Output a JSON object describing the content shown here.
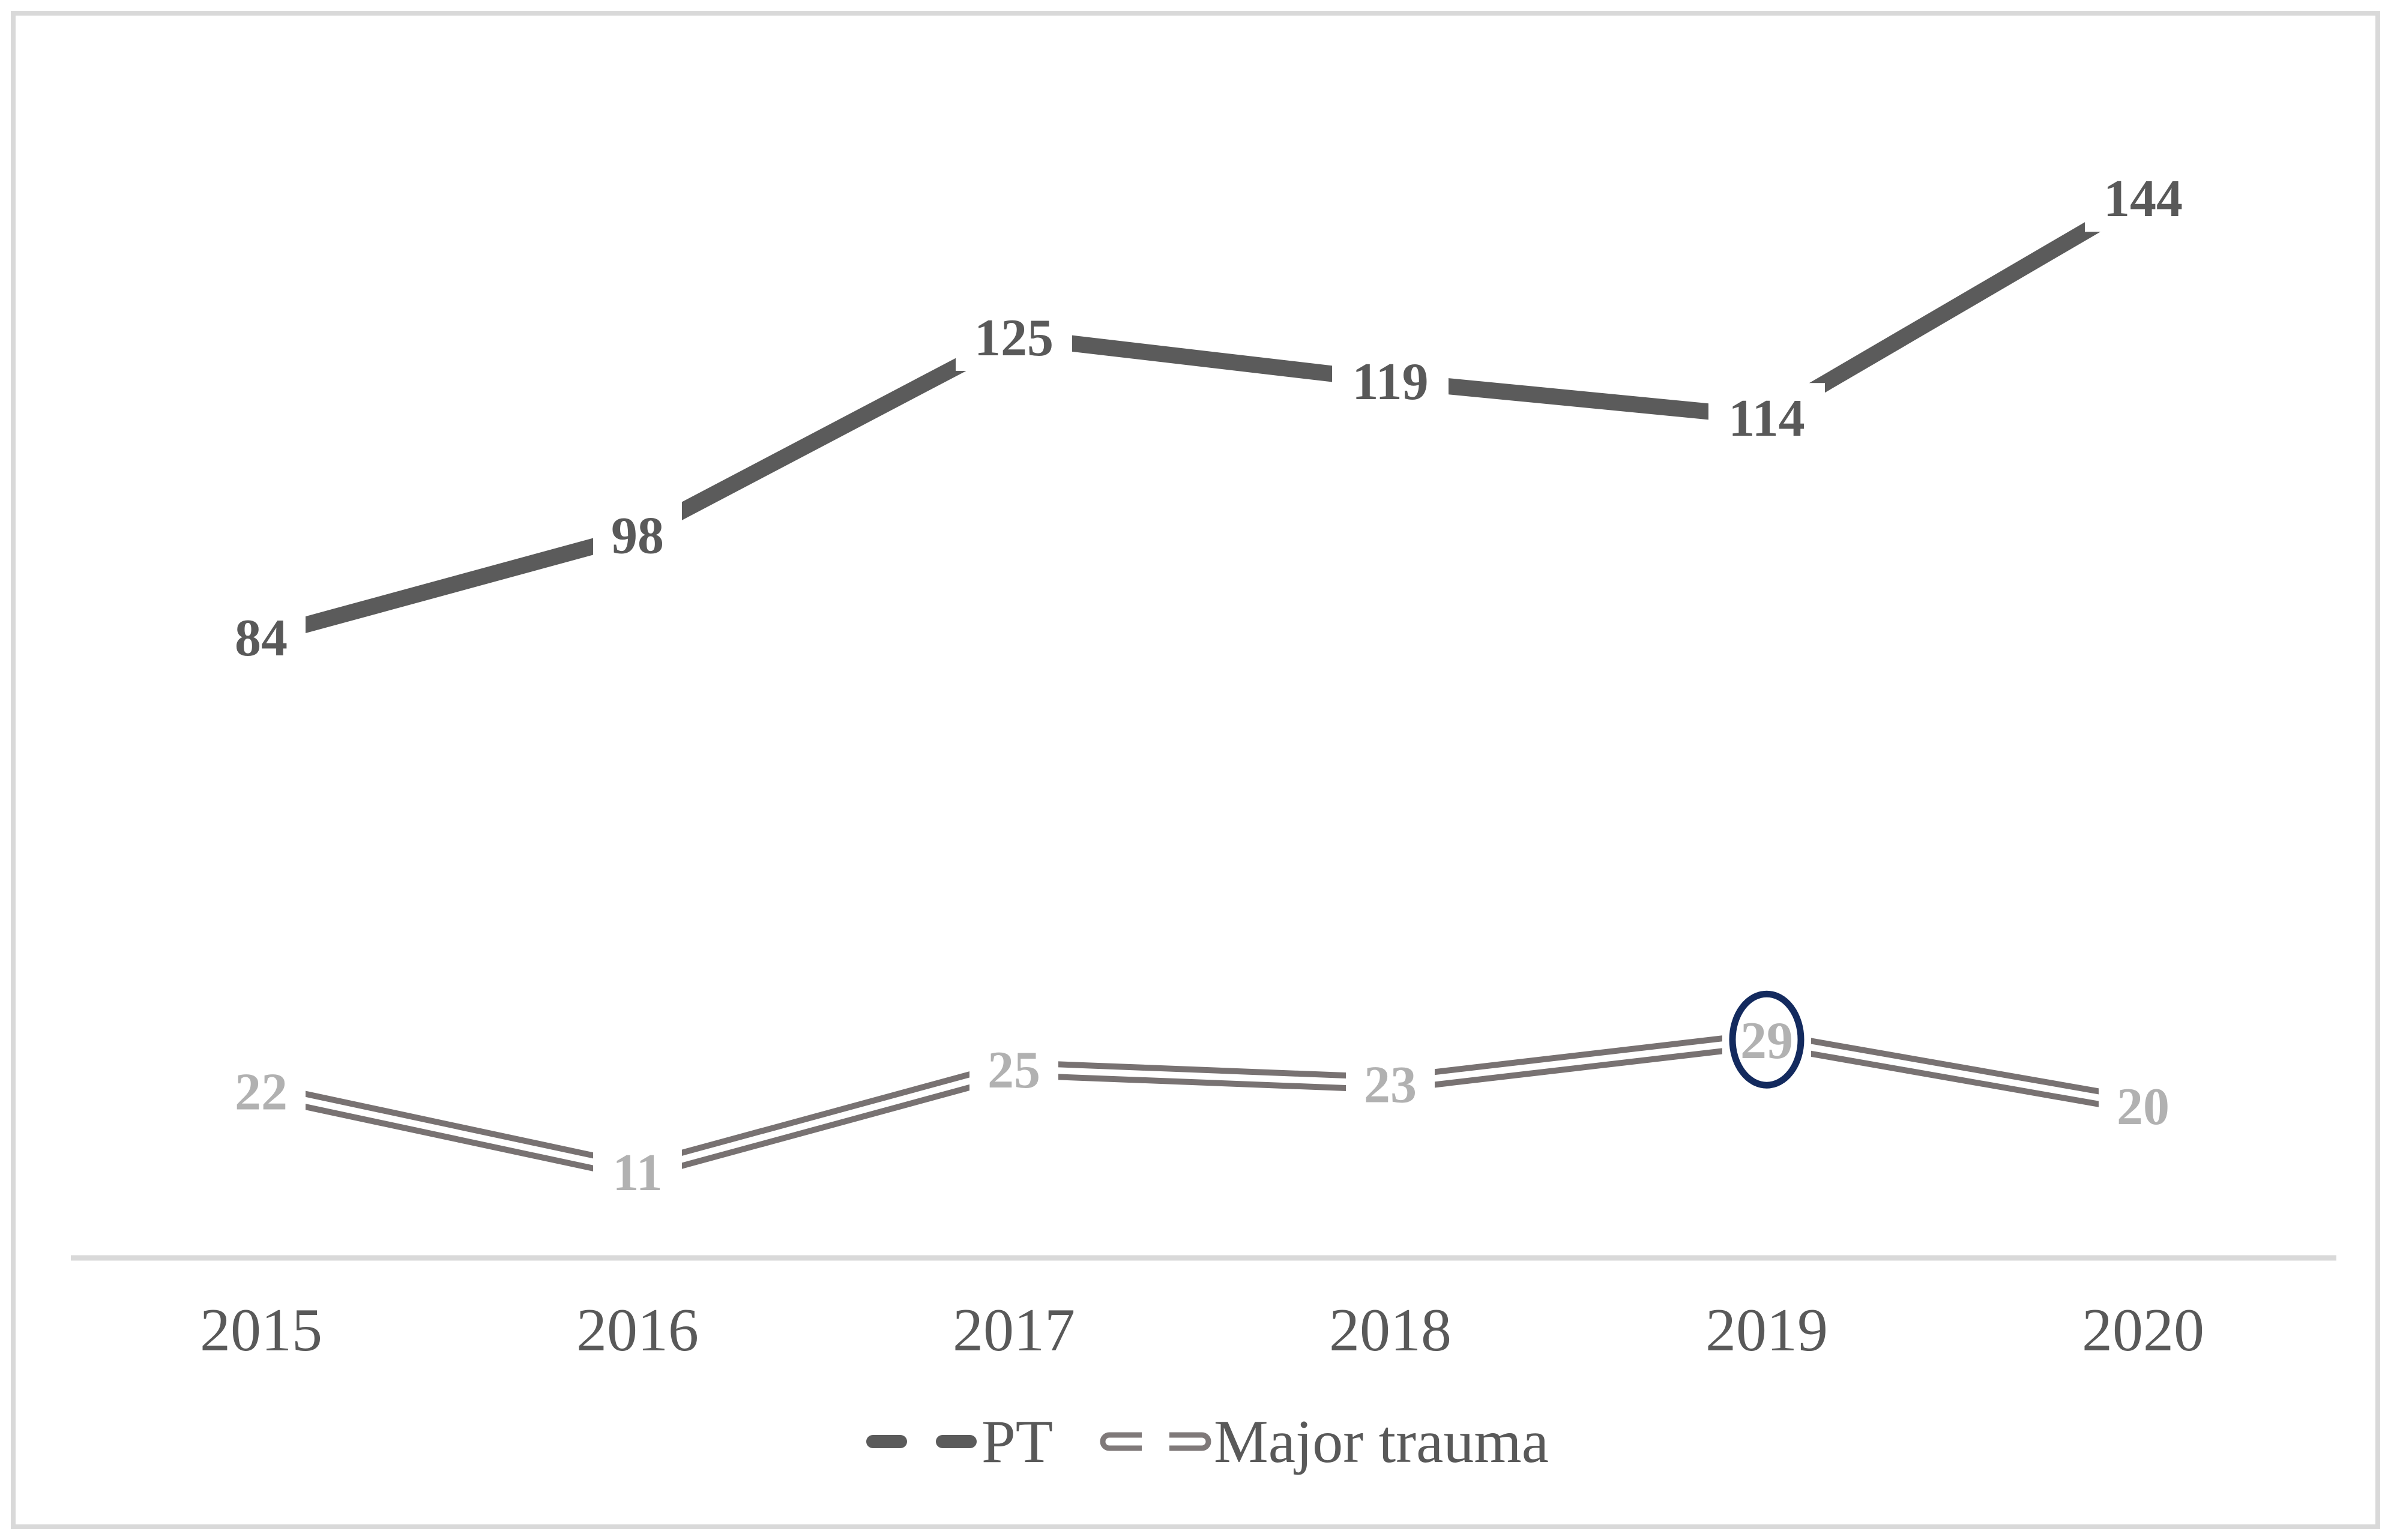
{
  "chart_data": {
    "type": "line",
    "title": "",
    "xlabel": "",
    "ylabel": "",
    "categories": [
      "2015",
      "2016",
      "2017",
      "2018",
      "2019",
      "2020"
    ],
    "series": [
      {
        "name": "PT",
        "values": [
          84,
          98,
          125,
          119,
          114,
          144
        ],
        "line_style": "thick-dash",
        "color": "#5b5b5b",
        "label_color": "#595959"
      },
      {
        "name": "Major trauma",
        "values": [
          22,
          11,
          25,
          23,
          29,
          20
        ],
        "line_style": "double-line",
        "color": "#787272",
        "label_color": "#b1b1b1"
      }
    ],
    "data_labels_visible": true,
    "annotations": [
      {
        "type": "ellipse-highlight",
        "series": "Major trauma",
        "category": "2019",
        "value": 29,
        "stroke_color": "#132a5e"
      }
    ],
    "x_axis": {
      "tick_label_color": "#595959",
      "line_color": "#d9d9d9"
    },
    "y_axis": {
      "visible": false
    },
    "ylim": [
      0,
      150
    ],
    "grid": "off",
    "legend": {
      "position": "bottom",
      "text_color": "#595959"
    },
    "frame_color": "#d9d9d9",
    "background_color": "#ffffff"
  }
}
